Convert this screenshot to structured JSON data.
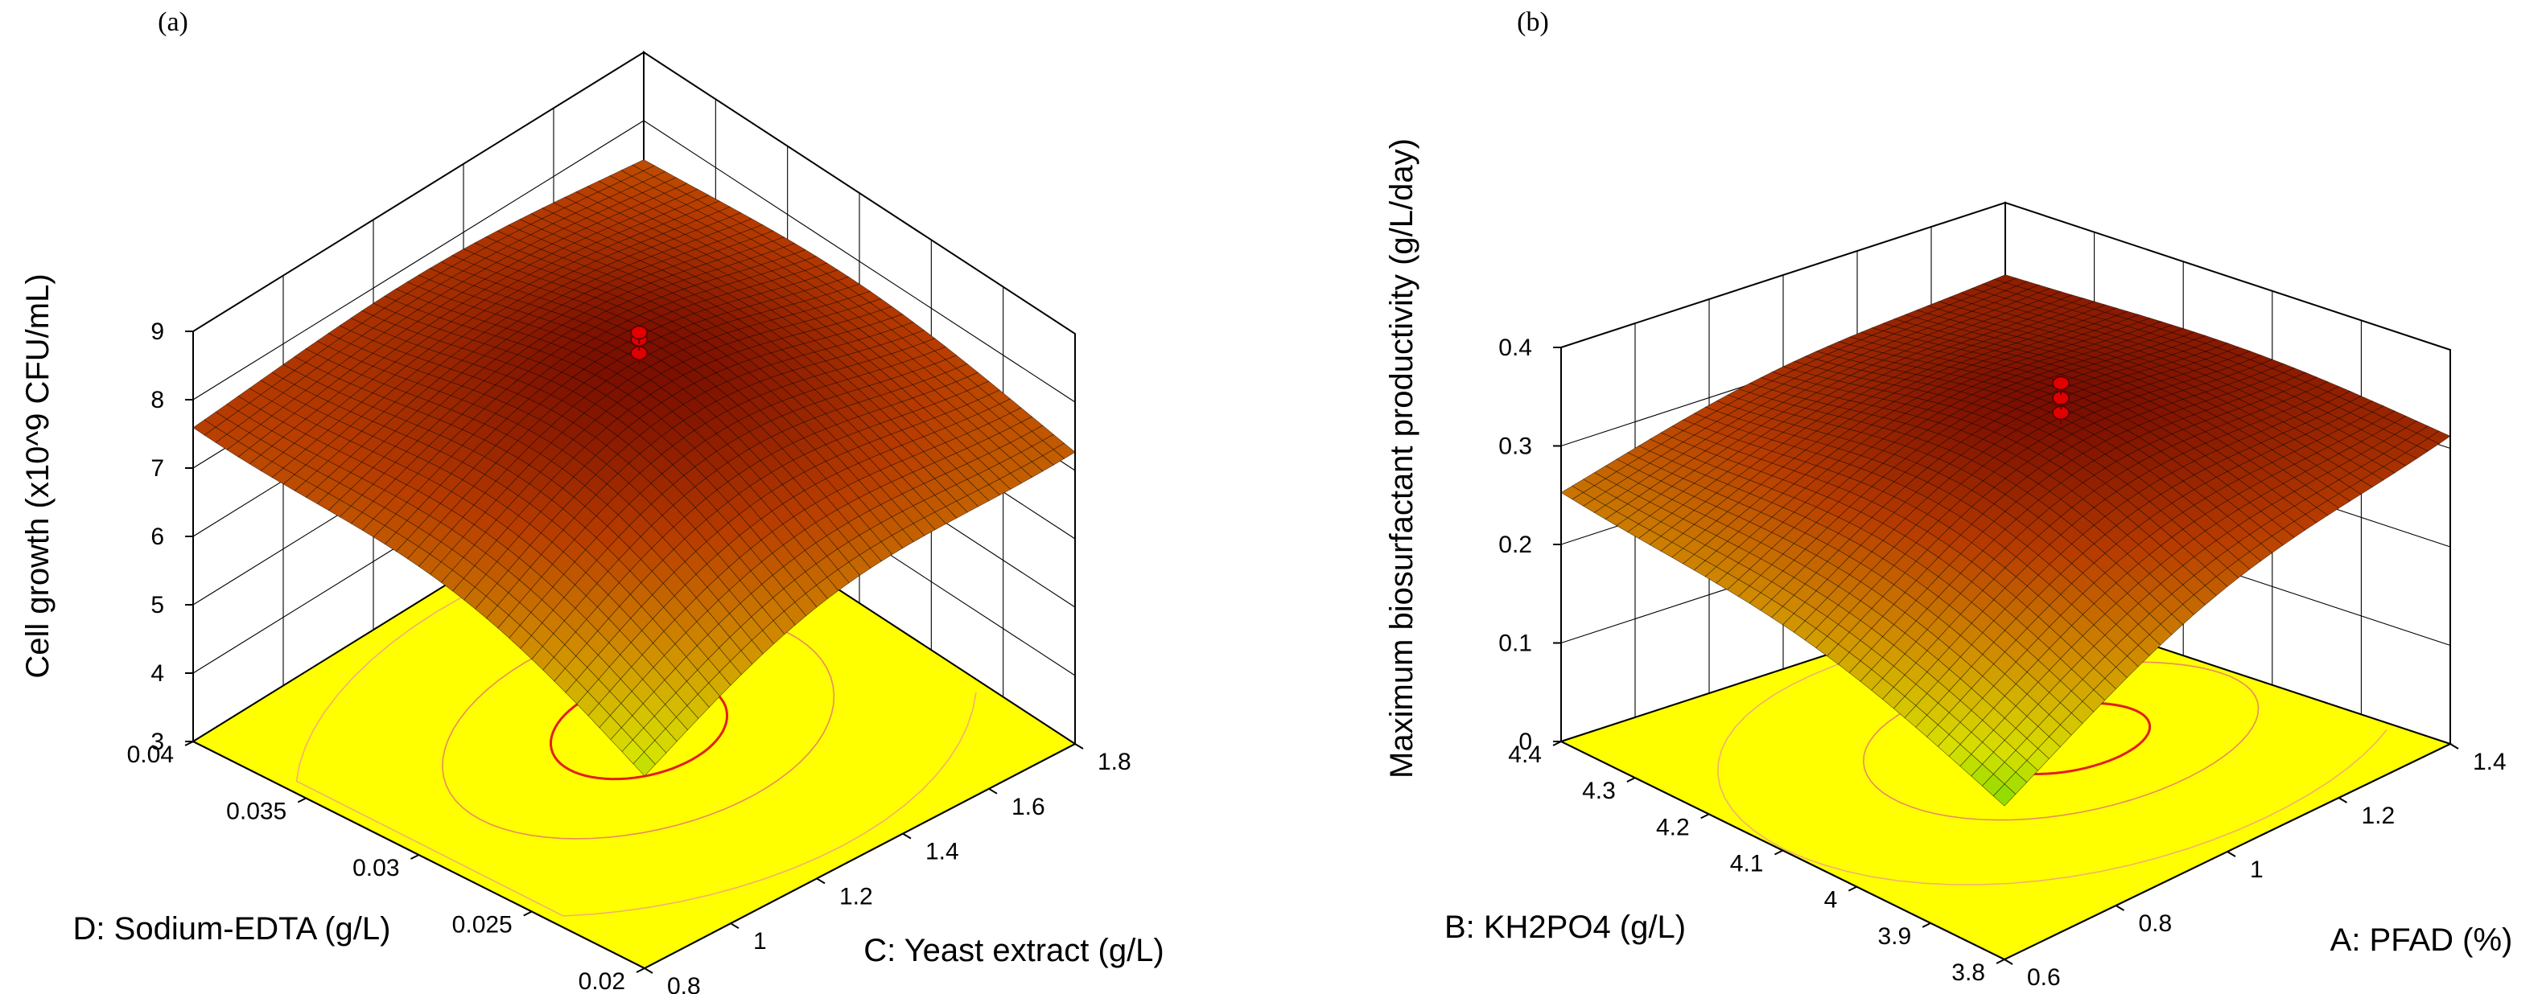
{
  "chart_data": [
    {
      "type": "surface",
      "panel_label": "(a)",
      "zlabel": "Cell growth (x10^9 CFU/mL)",
      "xlabel": "C: Yeast extract (g/L)",
      "ylabel": "D: Sodium-EDTA (g/L)",
      "z_ticks": [
        "3",
        "4",
        "5",
        "6",
        "7",
        "8",
        "9"
      ],
      "x_ticks": [
        "0.8",
        "1",
        "1.2",
        "1.4",
        "1.6",
        "1.8"
      ],
      "y_ticks": [
        "0.02",
        "0.025",
        "0.03",
        "0.035",
        "0.04"
      ],
      "zlim": [
        3,
        9
      ],
      "xlim": [
        0.8,
        1.8
      ],
      "ylim": [
        0.02,
        0.04
      ],
      "surface": {
        "optimum_x": 1.3,
        "optimum_y": 0.03,
        "z_max": 8.4,
        "z_corners": [
          7.4,
          7.0,
          5.2,
          7.2
        ]
      },
      "design_points": [
        {
          "x": 1.3,
          "y": 0.03,
          "z": 8.5
        },
        {
          "x": 1.3,
          "y": 0.03,
          "z": 8.7
        },
        {
          "x": 1.3,
          "y": 0.03,
          "z": 8.8
        }
      ],
      "colormap": [
        "#36d800",
        "#d8e000",
        "#d08a00",
        "#b83c00",
        "#7a0e00"
      ]
    },
    {
      "type": "surface",
      "panel_label": "(b)",
      "zlabel": "Maximum biosurfactant productivity (g/L/day)",
      "xlabel": "A: PFAD (%)",
      "ylabel": "B: KH2PO4 (g/L)",
      "z_ticks": [
        "0",
        "0.1",
        "0.2",
        "0.3",
        "0.4"
      ],
      "x_ticks": [
        "0.6",
        "0.8",
        "1",
        "1.2",
        "1.4"
      ],
      "y_ticks": [
        "3.8",
        "3.9",
        "4",
        "4.1",
        "4.2",
        "4.3",
        "4.4"
      ],
      "zlim": [
        0,
        0.4
      ],
      "xlim": [
        0.6,
        1.4
      ],
      "ylim": [
        3.8,
        4.4
      ],
      "surface": {
        "optimum_x": 1.1,
        "optimum_y": 4.1,
        "z_max": 0.345,
        "z_corners": [
          0.24,
          0.3,
          0.13,
          0.32
        ]
      },
      "design_points": [
        {
          "x": 1.1,
          "y": 4.1,
          "z": 0.33
        },
        {
          "x": 1.1,
          "y": 4.1,
          "z": 0.345
        },
        {
          "x": 1.1,
          "y": 4.1,
          "z": 0.36
        }
      ],
      "colormap": [
        "#36d800",
        "#d8e000",
        "#d08a00",
        "#b83c00",
        "#7a0e00"
      ]
    }
  ]
}
